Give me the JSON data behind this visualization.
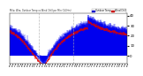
{
  "title": "Milw.  Wea.  Outdoor Temp  vs Wind Chill  per Min  (24 Hrs)",
  "legend_labels": [
    "Outdoor Temp",
    "Wind Chill"
  ],
  "legend_colors": [
    "#0000cc",
    "#cc0000"
  ],
  "bar_color": "#0000ee",
  "dot_color": "#dd0000",
  "background_color": "#ffffff",
  "plot_bg": "#ffffff",
  "ylim": [
    -8,
    42
  ],
  "yticks": [
    0,
    10,
    20,
    30,
    40
  ],
  "n_points": 1440,
  "vline_positions": [
    360,
    780
  ],
  "vline_color": "#aaaaaa",
  "seed": 42
}
